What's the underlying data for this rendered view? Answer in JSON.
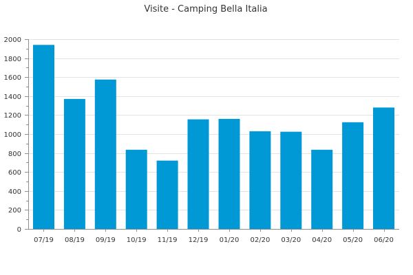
{
  "chart_data": {
    "type": "bar",
    "title": "Visite - Camping Bella Italia",
    "xlabel": "",
    "ylabel": "",
    "categories": [
      "07/19",
      "08/19",
      "09/19",
      "10/19",
      "11/19",
      "12/19",
      "01/20",
      "02/20",
      "03/20",
      "04/20",
      "05/20",
      "06/20"
    ],
    "values": [
      1940,
      1370,
      1575,
      835,
      720,
      1155,
      1160,
      1030,
      1025,
      835,
      1125,
      1280
    ],
    "ylim": [
      0,
      2000
    ],
    "yticks": [
      "0",
      "200",
      "400",
      "600",
      "800",
      "1000",
      "1200",
      "1400",
      "1600",
      "1800",
      "2000"
    ],
    "grid": true,
    "bar_color": "#0099d6"
  }
}
